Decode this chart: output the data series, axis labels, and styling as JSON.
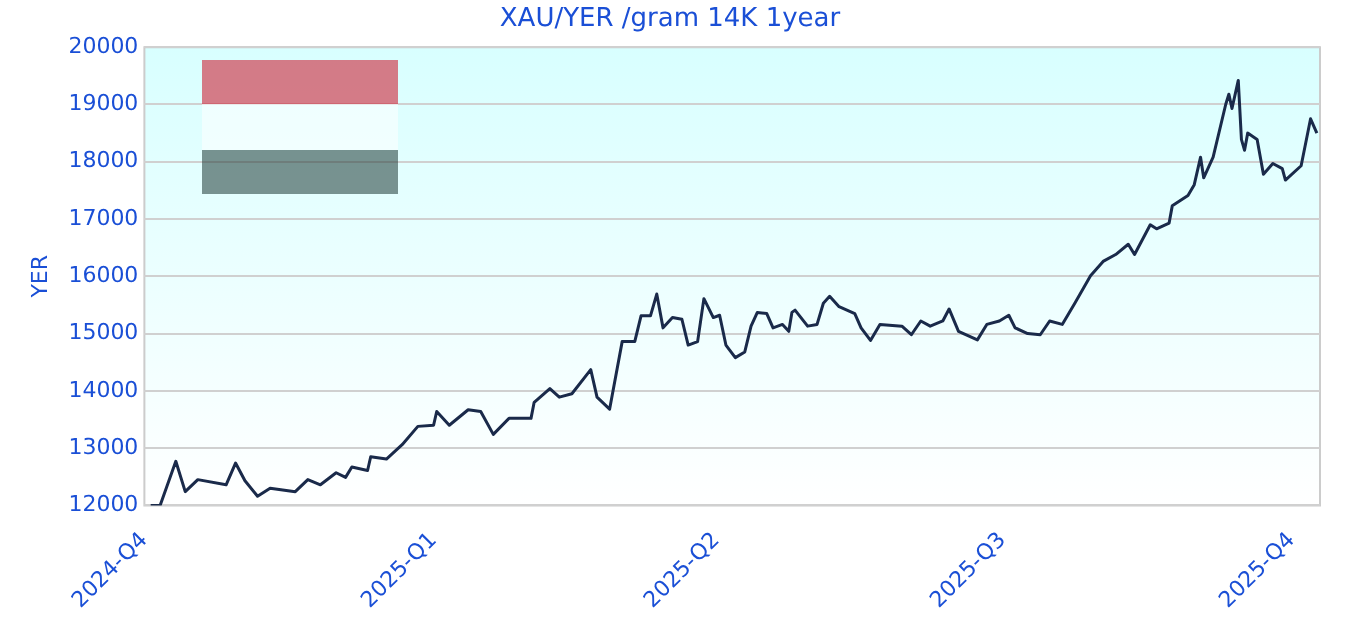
{
  "chart_data": {
    "type": "line",
    "title": "XAU/YER /gram 14K 1year",
    "ylabel": "YER",
    "x": [
      "2024-10-03",
      "2024-10-06",
      "2024-10-11",
      "2024-10-14",
      "2024-10-18",
      "2024-10-27",
      "2024-10-30",
      "2024-11-02",
      "2024-11-06",
      "2024-11-10",
      "2024-11-18",
      "2024-11-22",
      "2024-11-26",
      "2024-12-01",
      "2024-12-04",
      "2024-12-06",
      "2024-12-11",
      "2024-12-12",
      "2024-12-17",
      "2024-12-22",
      "2024-12-27",
      "2025-01-01",
      "2025-01-02",
      "2025-01-06",
      "2025-01-12",
      "2025-01-16",
      "2025-01-20",
      "2025-01-25",
      "2025-02-01",
      "2025-02-02",
      "2025-02-07",
      "2025-02-10",
      "2025-02-14",
      "2025-02-20",
      "2025-02-22",
      "2025-02-26",
      "2025-03-02",
      "2025-03-06",
      "2025-03-08",
      "2025-03-11",
      "2025-03-13",
      "2025-03-15",
      "2025-03-18",
      "2025-03-21",
      "2025-03-23",
      "2025-03-26",
      "2025-03-28",
      "2025-03-31",
      "2025-04-02",
      "2025-04-04",
      "2025-04-07",
      "2025-04-10",
      "2025-04-12",
      "2025-04-14",
      "2025-04-17",
      "2025-04-19",
      "2025-04-22",
      "2025-04-24",
      "2025-04-25",
      "2025-04-26",
      "2025-04-30",
      "2025-05-03",
      "2025-05-05",
      "2025-05-07",
      "2025-05-10",
      "2025-05-15",
      "2025-05-17",
      "2025-05-20",
      "2025-05-23",
      "2025-05-30",
      "2025-06-02",
      "2025-06-05",
      "2025-06-08",
      "2025-06-12",
      "2025-06-14",
      "2025-06-17",
      "2025-06-23",
      "2025-06-26",
      "2025-06-30",
      "2025-07-03",
      "2025-07-05",
      "2025-07-09",
      "2025-07-13",
      "2025-07-16",
      "2025-07-20",
      "2025-07-24",
      "2025-07-29",
      "2025-08-02",
      "2025-08-06",
      "2025-08-10",
      "2025-08-12",
      "2025-08-17",
      "2025-08-19",
      "2025-08-23",
      "2025-08-24",
      "2025-08-29",
      "2025-08-31",
      "2025-09-02",
      "2025-09-03",
      "2025-09-06",
      "2025-09-10",
      "2025-09-11",
      "2025-09-12",
      "2025-09-14",
      "2025-09-15",
      "2025-09-16",
      "2025-09-17",
      "2025-09-20",
      "2025-09-22",
      "2025-09-25",
      "2025-09-28",
      "2025-09-29",
      "2025-10-04",
      "2025-10-07",
      "2025-10-09"
    ],
    "series": [
      {
        "color": "#1a2a4a",
        "values": [
          12000,
          12000,
          12770,
          12240,
          12450,
          12360,
          12740,
          12430,
          12160,
          12300,
          12240,
          12450,
          12360,
          12570,
          12490,
          12670,
          12610,
          12850,
          12810,
          13060,
          13380,
          13400,
          13640,
          13400,
          13670,
          13640,
          13240,
          13520,
          13520,
          13800,
          14040,
          13890,
          13950,
          14370,
          13890,
          13680,
          14860,
          14860,
          15310,
          15310,
          15690,
          15100,
          15280,
          15250,
          14800,
          14860,
          15610,
          15280,
          15320,
          14800,
          14580,
          14680,
          15130,
          15370,
          15350,
          15100,
          15160,
          15040,
          15370,
          15410,
          15130,
          15160,
          15530,
          15650,
          15470,
          15350,
          15100,
          14880,
          15160,
          15130,
          14980,
          15220,
          15130,
          15220,
          15430,
          15040,
          14890,
          15160,
          15220,
          15320,
          15100,
          15000,
          14980,
          15220,
          15160,
          15530,
          16010,
          16260,
          16380,
          16560,
          16380,
          16900,
          16830,
          16930,
          17230,
          17410,
          17600,
          18080,
          17720,
          18080,
          19000,
          19180,
          18930,
          19420,
          18390,
          18200,
          18500,
          18390,
          17780,
          17970,
          17880,
          17680,
          17930,
          18750,
          18500
        ]
      }
    ],
    "xlim": [
      "2024-10-01",
      "2025-10-10"
    ],
    "xticks": [
      {
        "value": "2024-10-01",
        "label": "2024-Q4"
      },
      {
        "value": "2025-01-01",
        "label": "2025-Q1"
      },
      {
        "value": "2025-04-01",
        "label": "2025-Q2"
      },
      {
        "value": "2025-07-01",
        "label": "2025-Q3"
      },
      {
        "value": "2025-10-01",
        "label": "2025-Q4"
      }
    ],
    "ylim": [
      12000,
      20000
    ],
    "yticks": [
      12000,
      13000,
      14000,
      15000,
      16000,
      17000,
      18000,
      19000,
      20000
    ],
    "grid": "y",
    "legend": false,
    "marker": "none",
    "line_style": "solid"
  }
}
